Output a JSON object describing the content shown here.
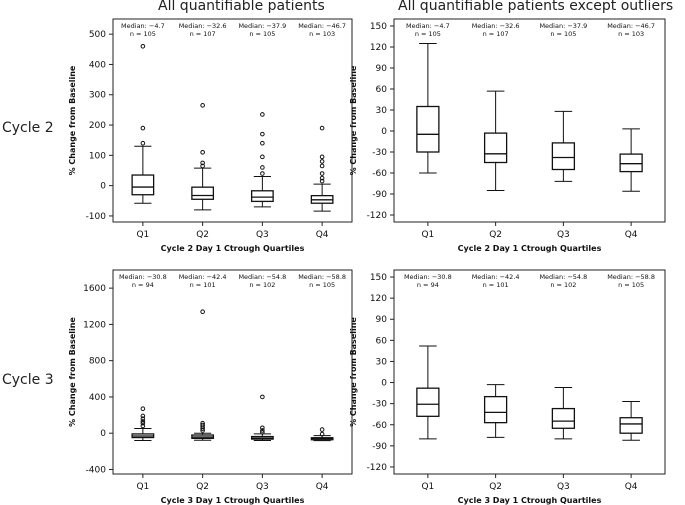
{
  "titles": {
    "left": "All quantifiable patients",
    "right": "All quantifiable patients except outliers"
  },
  "row_labels": {
    "cycle2": "Cycle 2",
    "cycle3": "Cycle 3"
  },
  "colors": {
    "box": "#111111",
    "frame": "#222222",
    "text": "#111111"
  },
  "chart_data": [
    {
      "type": "box",
      "name": "cycle2-all",
      "xlabel": "Cycle 2 Day 1 Ctrough Quartiles",
      "ylabel": "% Change from Baseline",
      "ylim": [
        -120,
        550
      ],
      "yticks": [
        -100,
        0,
        100,
        200,
        300,
        400,
        500
      ],
      "categories": [
        "Q1",
        "Q2",
        "Q3",
        "Q4"
      ],
      "median_labels": [
        "Median: −4.7",
        "Median: −32.6",
        "Median: −37.9",
        "Median: −46.7"
      ],
      "n_labels": [
        "n = 105",
        "n = 107",
        "n = 105",
        "n = 103"
      ],
      "boxes": [
        {
          "q1": -30,
          "median": -4.7,
          "q3": 35,
          "whisker_low": -58,
          "whisker_high": 130
        },
        {
          "q1": -45,
          "median": -32.6,
          "q3": -5,
          "whisker_low": -80,
          "whisker_high": 58
        },
        {
          "q1": -52,
          "median": -37.9,
          "q3": -17,
          "whisker_low": -70,
          "whisker_high": 30
        },
        {
          "q1": -58,
          "median": -46.7,
          "q3": -33,
          "whisker_low": -84,
          "whisker_high": 5
        }
      ],
      "outliers": [
        [
          140,
          190,
          460
        ],
        [
          65,
          75,
          110,
          265
        ],
        [
          40,
          60,
          95,
          140,
          170,
          235
        ],
        [
          15,
          25,
          40,
          65,
          80,
          95,
          190
        ]
      ]
    },
    {
      "type": "box",
      "name": "cycle2-no-outliers",
      "xlabel": "Cycle 2 Day 1 Ctrough Quartiles",
      "ylabel": "% Change from Baseline",
      "ylim": [
        -130,
        160
      ],
      "yticks": [
        -120,
        -90,
        -60,
        -30,
        0,
        30,
        60,
        90,
        120,
        150
      ],
      "categories": [
        "Q1",
        "Q2",
        "Q3",
        "Q4"
      ],
      "median_labels": [
        "Median: −4.7",
        "Median: −32.6",
        "Median: −37.9",
        "Median: −46.7"
      ],
      "n_labels": [
        "n = 105",
        "n = 107",
        "n = 105",
        "n = 103"
      ],
      "boxes": [
        {
          "q1": -30,
          "median": -4.7,
          "q3": 35,
          "whisker_low": -60,
          "whisker_high": 125
        },
        {
          "q1": -45,
          "median": -32.6,
          "q3": -3,
          "whisker_low": -85,
          "whisker_high": 57
        },
        {
          "q1": -55,
          "median": -37.9,
          "q3": -17,
          "whisker_low": -72,
          "whisker_high": 28
        },
        {
          "q1": -58,
          "median": -46.7,
          "q3": -33,
          "whisker_low": -86,
          "whisker_high": 3
        }
      ],
      "outliers": [
        [],
        [],
        [],
        []
      ]
    },
    {
      "type": "box",
      "name": "cycle3-all",
      "xlabel": "Cycle 3 Day 1 Ctrough Quartiles",
      "ylabel": "% Change from Baseline",
      "ylim": [
        -450,
        1800
      ],
      "yticks": [
        -400,
        0,
        400,
        800,
        1200,
        1600
      ],
      "categories": [
        "Q1",
        "Q2",
        "Q3",
        "Q4"
      ],
      "median_labels": [
        "Median: −30.8",
        "Median: −42.4",
        "Median: −54.8",
        "Median: −58.8"
      ],
      "n_labels": [
        "n = 94",
        "n = 101",
        "n = 102",
        "n = 105"
      ],
      "boxes": [
        {
          "q1": -48,
          "median": -30.8,
          "q3": -8,
          "whisker_low": -80,
          "whisker_high": 52
        },
        {
          "q1": -57,
          "median": -42.4,
          "q3": -20,
          "whisker_low": -78,
          "whisker_high": 0
        },
        {
          "q1": -65,
          "median": -54.8,
          "q3": -37,
          "whisker_low": -80,
          "whisker_high": -8
        },
        {
          "q1": -72,
          "median": -58.8,
          "q3": -50,
          "whisker_low": -82,
          "whisker_high": -27
        }
      ],
      "outliers": [
        [
          80,
          110,
          130,
          160,
          190,
          270
        ],
        [
          30,
          50,
          70,
          90,
          110,
          1340
        ],
        [
          10,
          30,
          60,
          400
        ],
        [
          -10,
          40
        ]
      ]
    },
    {
      "type": "box",
      "name": "cycle3-no-outliers",
      "xlabel": "Cycle 3 Day 1 Ctrough Quartiles",
      "ylabel": "% Change from Baseline",
      "ylim": [
        -130,
        160
      ],
      "yticks": [
        -120,
        -90,
        -60,
        -30,
        0,
        30,
        60,
        90,
        120,
        150
      ],
      "categories": [
        "Q1",
        "Q2",
        "Q3",
        "Q4"
      ],
      "median_labels": [
        "Median: −30.8",
        "Median: −42.4",
        "Median: −54.8",
        "Median: −58.8"
      ],
      "n_labels": [
        "n = 94",
        "n = 101",
        "n = 102",
        "n = 105"
      ],
      "boxes": [
        {
          "q1": -48,
          "median": -30.8,
          "q3": -8,
          "whisker_low": -80,
          "whisker_high": 52
        },
        {
          "q1": -57,
          "median": -42.4,
          "q3": -20,
          "whisker_low": -78,
          "whisker_high": -3
        },
        {
          "q1": -65,
          "median": -54.8,
          "q3": -37,
          "whisker_low": -80,
          "whisker_high": -7
        },
        {
          "q1": -72,
          "median": -58.8,
          "q3": -50,
          "whisker_low": -82,
          "whisker_high": -27
        }
      ],
      "outliers": [
        [],
        [],
        [],
        []
      ]
    }
  ]
}
